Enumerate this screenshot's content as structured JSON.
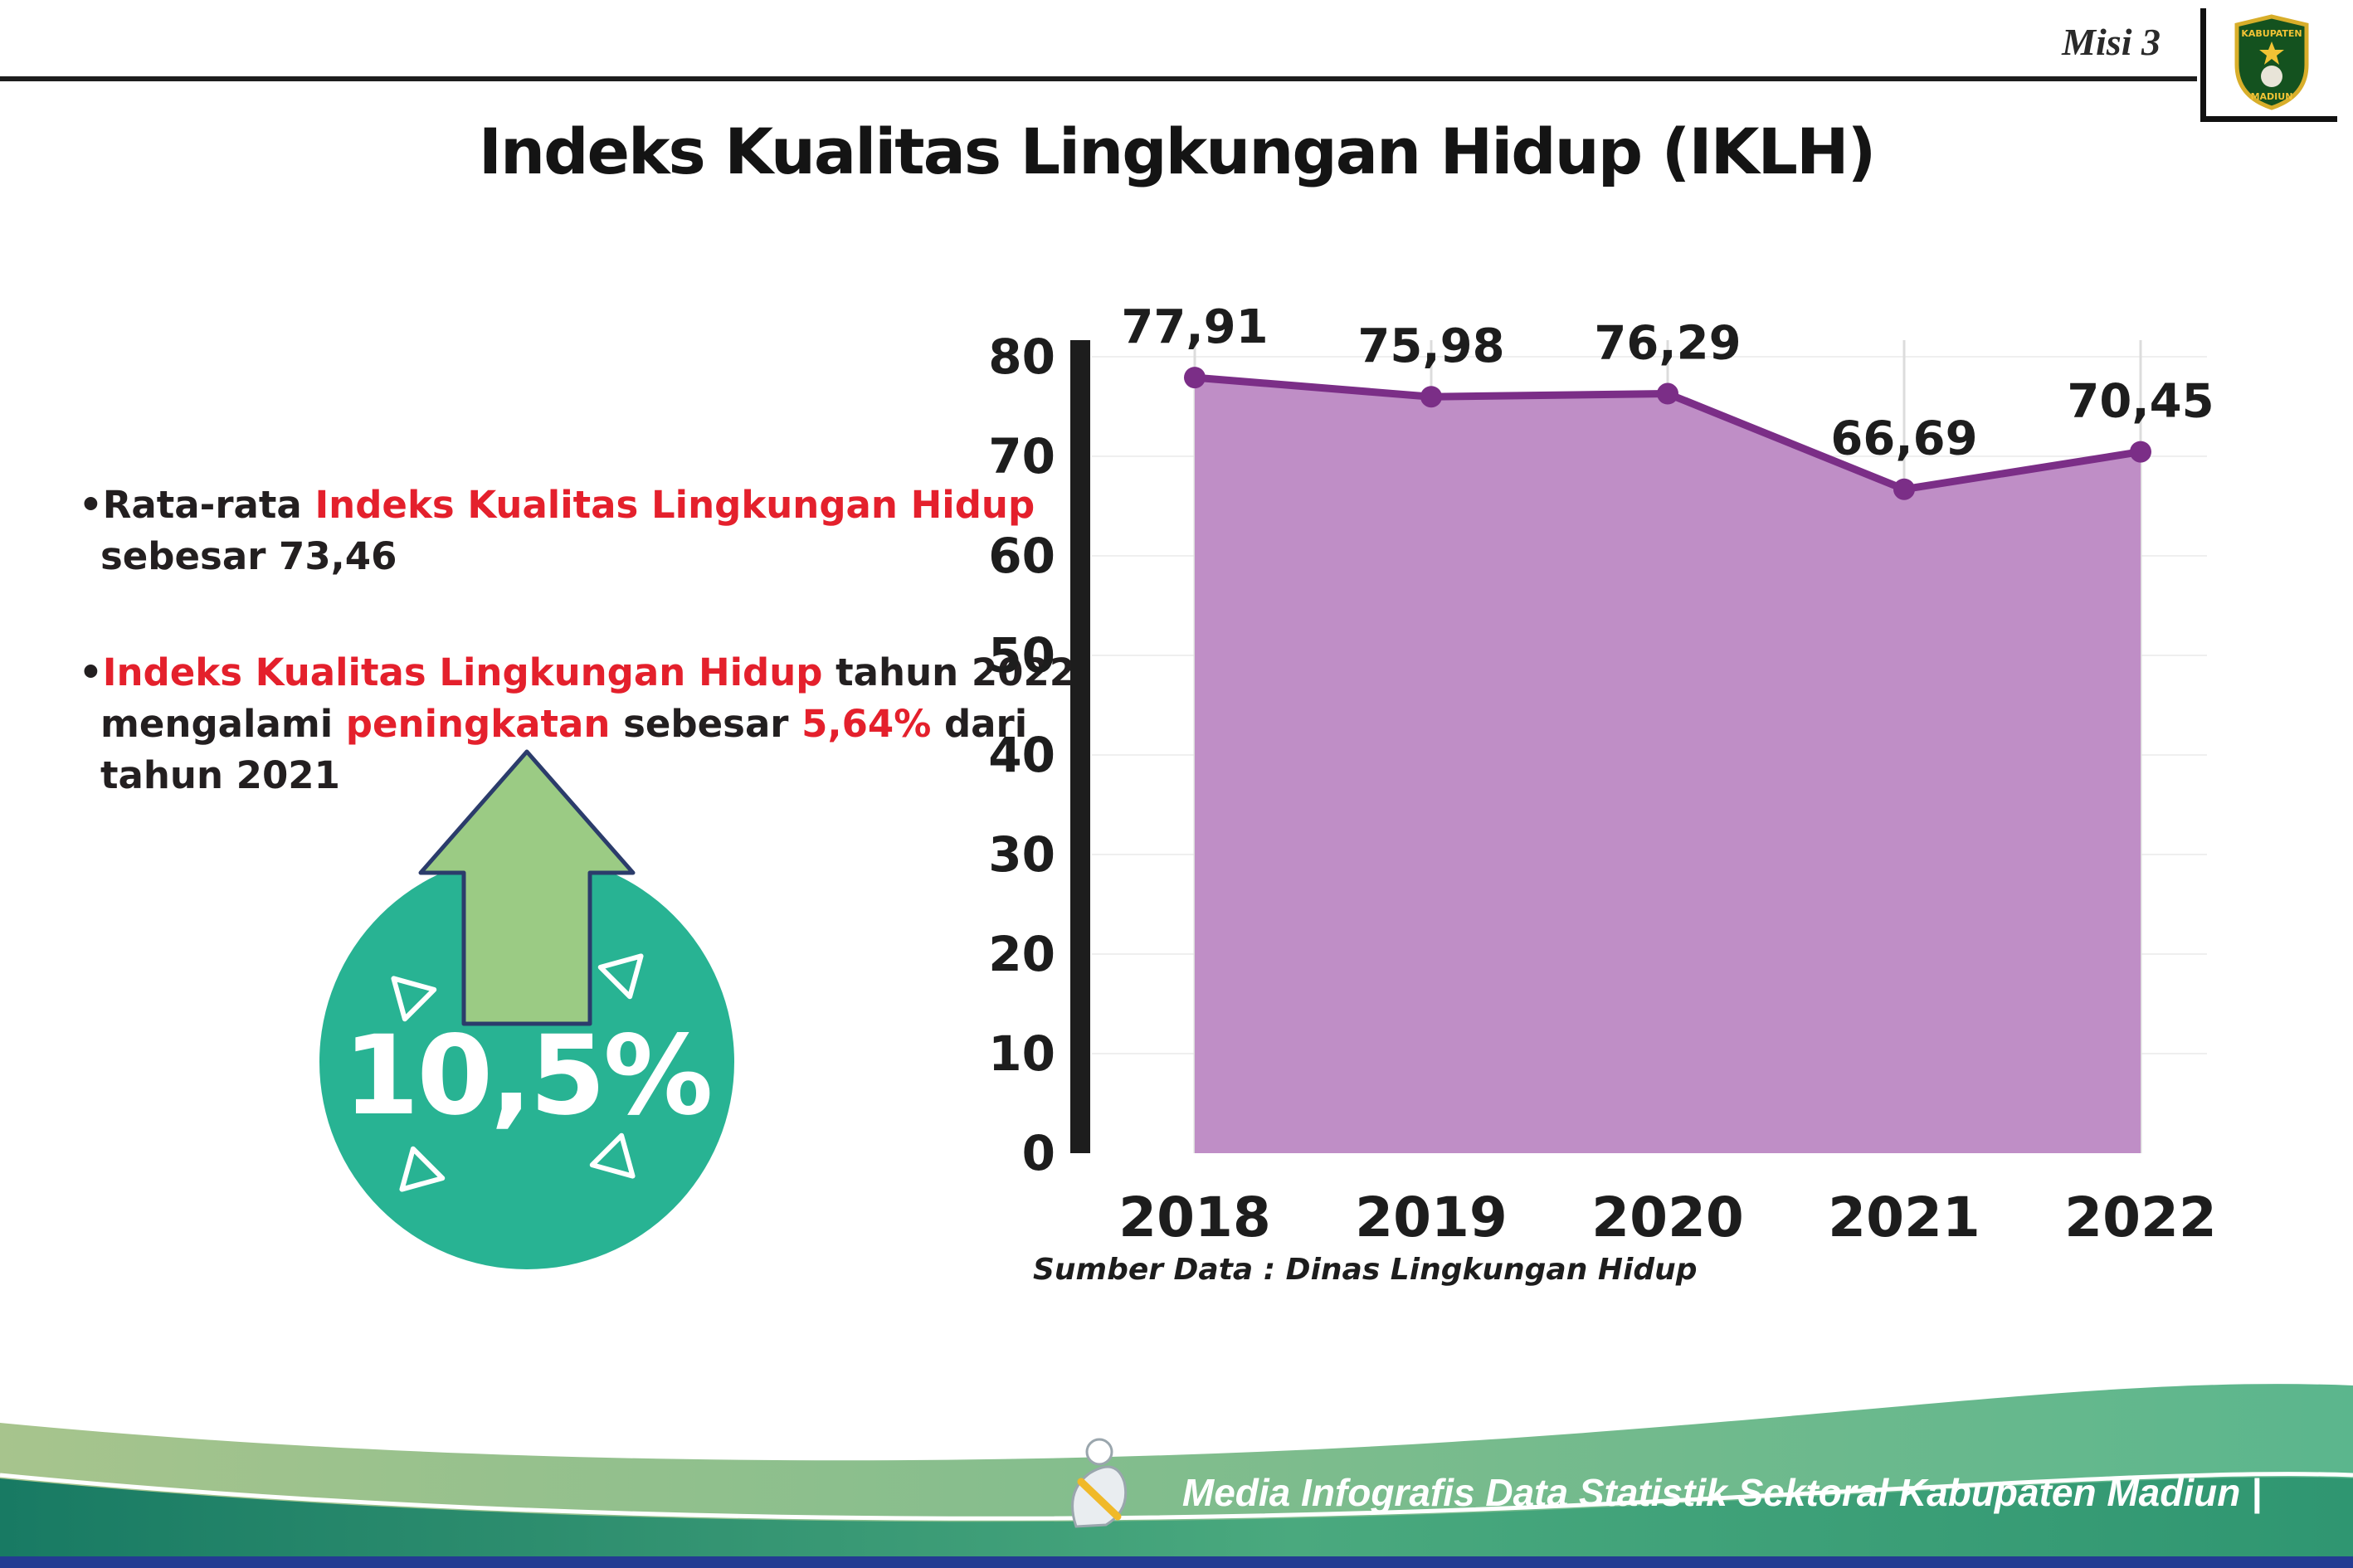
{
  "header": {
    "misi_label": "Misi 3",
    "title": "Indeks Kualitas Lingkungan Hidup (IKLH)",
    "logo": {
      "top": "KABUPATEN",
      "bottom": "MADIUN"
    }
  },
  "bullets": [
    {
      "lines": [
        [
          {
            "text": "•Rata-rata ",
            "red": false
          },
          {
            "text": "Indeks Kualitas Lingkungan Hidup",
            "red": true
          }
        ],
        [
          {
            "text": "sebesar 73,46",
            "red": false
          }
        ]
      ]
    },
    {
      "lines": [
        [
          {
            "text": "•",
            "red": false
          },
          {
            "text": "Indeks Kualitas Lingkungan Hidup",
            "red": true
          },
          {
            "text": " tahun 2022",
            "red": false
          }
        ],
        [
          {
            "text": "mengalami ",
            "red": false
          },
          {
            "text": "peningkatan",
            "red": true
          },
          {
            "text": " sebesar ",
            "red": false
          },
          {
            "text": "5,64%",
            "red": true
          },
          {
            "text": " dari",
            "red": false
          }
        ],
        [
          {
            "text": "tahun 2021",
            "red": false
          }
        ]
      ]
    }
  ],
  "badge": {
    "value": "10,5%"
  },
  "chart_data": {
    "type": "area",
    "categories": [
      "2018",
      "2019",
      "2020",
      "2021",
      "2022"
    ],
    "values": [
      77.91,
      75.98,
      76.29,
      66.69,
      70.45
    ],
    "value_labels": [
      "77,91",
      "75,98",
      "76,29",
      "66,69",
      "70,45"
    ],
    "title": "",
    "xlabel": "",
    "ylabel": "",
    "ylim": [
      0,
      80
    ],
    "ytick_step": 10,
    "grid": "faint-vertical",
    "legend": "none",
    "line_color": "#7b2e87",
    "fill_color": "#bf8ec6",
    "marker_color": "#7b2e87"
  },
  "source_note": "Sumber Data : Dinas Lingkungan Hidup",
  "footer": {
    "credit": "Media Infografis Data Statistik Sektoral Kabupaten Madiun |"
  },
  "colors": {
    "accent_red": "#e4202c",
    "badge_teal": "#28b393",
    "arrow_green": "#9bcb84",
    "line_purple": "#7b2e87",
    "fill_mauve": "#bf8ec6"
  }
}
